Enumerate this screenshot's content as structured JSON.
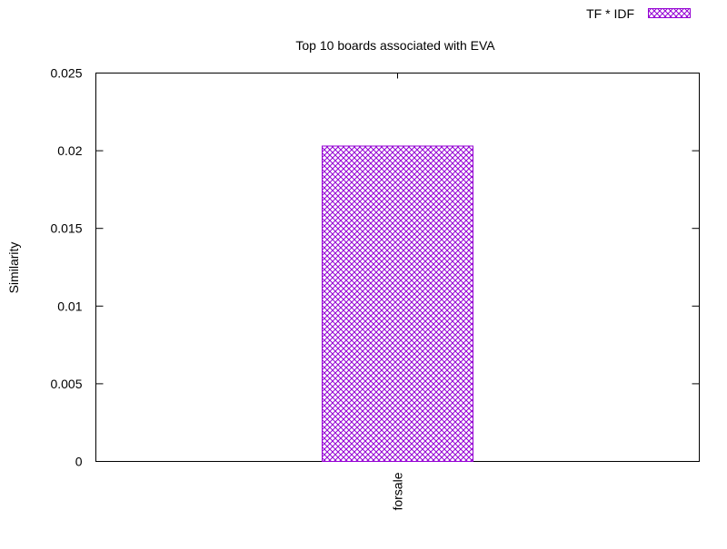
{
  "chart_data": {
    "type": "bar",
    "title": "Top 10 boards associated with EVA",
    "xlabel": "",
    "ylabel": "Similarity",
    "ylim": [
      0,
      0.025
    ],
    "yticks": [
      "0",
      "0.005",
      "0.01",
      "0.015",
      "0.02",
      "0.025"
    ],
    "categories": [
      "forsale"
    ],
    "series": [
      {
        "name": "TF * IDF",
        "values": [
          0.0203
        ],
        "color": "#9400d3",
        "fill": "crosshatch"
      }
    ],
    "legend": "top-right",
    "grid": false
  }
}
